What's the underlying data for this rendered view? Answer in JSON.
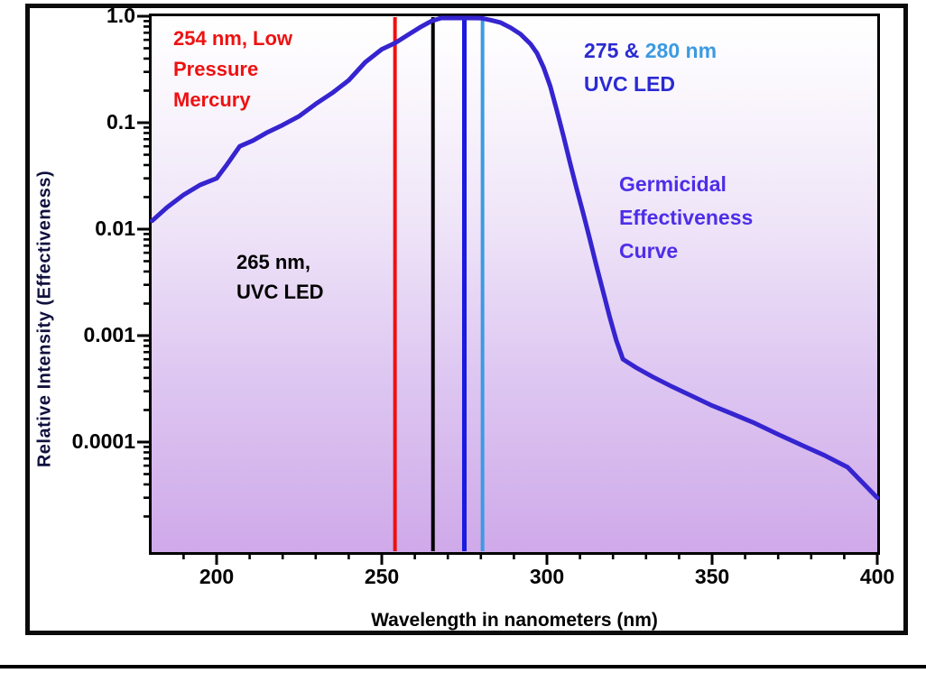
{
  "figure": {
    "y_axis_title": "Relative Intensity (Effectiveness)",
    "x_axis_title": "Wavelength in nanometers (nm)",
    "y_tick_labels": [
      "1.0",
      "0.1",
      "0.01",
      "0.001",
      "0.0001"
    ],
    "x_tick_labels": [
      "200",
      "250",
      "300",
      "350",
      "400"
    ]
  },
  "annotations": {
    "mercury": {
      "lines": [
        "254 nm, Low",
        "Pressure",
        "Mercury"
      ],
      "color": "#ee1111"
    },
    "led265": {
      "lines": [
        "265 nm,",
        "UVC LED"
      ],
      "color": "#000000"
    },
    "led275": {
      "prefix": "275 & ",
      "highlight": "280 nm",
      "line2": "UVC LED",
      "color": "#2a2ad2",
      "highlight_color": "#3d9ae1"
    },
    "germicidal": {
      "lines": [
        "Germicidal",
        "Effectiveness",
        "Curve"
      ],
      "color": "#4d2ee8"
    }
  },
  "chart_data": {
    "type": "line",
    "title": "Germicidal Effectiveness Curve",
    "xlabel": "Wavelength in nanometers (nm)",
    "ylabel": "Relative Intensity (Effectiveness)",
    "x_range": [
      180,
      400
    ],
    "y_scale": "log",
    "y_range": [
      1e-05,
      1.0
    ],
    "x_ticks": [
      200,
      250,
      300,
      350,
      400
    ],
    "x_minor_tick_step": 10,
    "y_ticks": [
      1.0,
      0.1,
      0.01,
      0.001,
      0.0001
    ],
    "grid": false,
    "legend": "none",
    "line_color": "#3524cf",
    "background_gradient": [
      "#ffffff",
      "#cfa9e9"
    ],
    "series": [
      {
        "name": "Germicidal Effectiveness Curve",
        "x": [
          180.5,
          185,
          190,
          195,
          200,
          203,
          207,
          211,
          215,
          220,
          225,
          230,
          235,
          240,
          245,
          250,
          254,
          258,
          262,
          265,
          268,
          271,
          274,
          277,
          280,
          283,
          286,
          289,
          292,
          295,
          297,
          299,
          301,
          303,
          305,
          307,
          309,
          311,
          313,
          315,
          317,
          319,
          321,
          323,
          327,
          332,
          338,
          344,
          350,
          356,
          363,
          370,
          377,
          384,
          391,
          400
        ],
        "y": [
          0.012,
          0.016,
          0.021,
          0.026,
          0.03,
          0.04,
          0.06,
          0.068,
          0.08,
          0.095,
          0.115,
          0.15,
          0.19,
          0.25,
          0.37,
          0.49,
          0.56,
          0.67,
          0.8,
          0.9,
          0.97,
          1.0,
          1.0,
          0.99,
          0.96,
          0.92,
          0.87,
          0.78,
          0.68,
          0.55,
          0.45,
          0.33,
          0.22,
          0.13,
          0.075,
          0.042,
          0.024,
          0.014,
          0.008,
          0.0045,
          0.0026,
          0.0015,
          0.0009,
          0.0006,
          0.0005,
          0.00041,
          0.00033,
          0.00027,
          0.00022,
          0.000185,
          0.00015,
          0.000118,
          9.4e-05,
          7.5e-05,
          5.8e-05,
          3e-05
        ]
      }
    ],
    "marker_lines": [
      {
        "wavelength": 254,
        "color": "#ee1111",
        "width": 4,
        "label": "254 nm, Low Pressure Mercury"
      },
      {
        "wavelength": 265.5,
        "color": "#000000",
        "width": 4,
        "label": "265 nm, UVC LED"
      },
      {
        "wavelength": 275,
        "color": "#1a1ae0",
        "width": 5,
        "label": "275 nm UVC LED"
      },
      {
        "wavelength": 280.5,
        "color": "#3d9ae1",
        "width": 4,
        "label": "280 nm UVC LED"
      }
    ]
  }
}
